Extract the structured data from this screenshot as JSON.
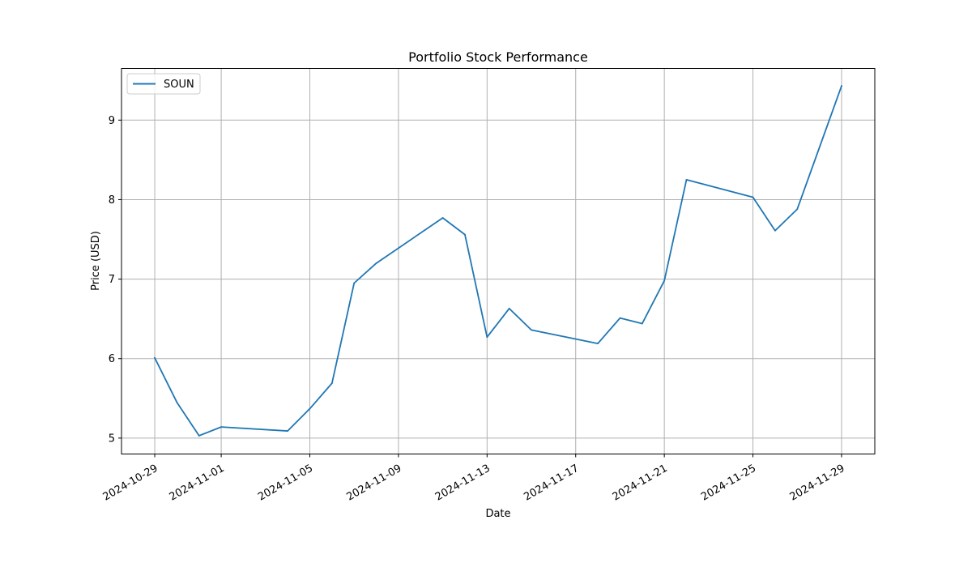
{
  "chart_data": {
    "type": "line",
    "title": "Portfolio Stock Performance",
    "xlabel": "Date",
    "ylabel": "Price (USD)",
    "x_tick_labels": [
      "2024-10-29",
      "2024-11-01",
      "2024-11-05",
      "2024-11-09",
      "2024-11-13",
      "2024-11-17",
      "2024-11-21",
      "2024-11-25",
      "2024-11-29"
    ],
    "y_ticks": [
      5,
      6,
      7,
      8,
      9
    ],
    "xlim": [
      "2024-10-27T12:00",
      "2024-11-30T12:00"
    ],
    "ylim": [
      4.8,
      9.65
    ],
    "grid": true,
    "legend_position": "top-left",
    "series": [
      {
        "name": "SOUN",
        "color": "#1f77b4",
        "x": [
          "2024-10-29",
          "2024-10-30",
          "2024-10-31",
          "2024-11-01",
          "2024-11-04",
          "2024-11-05",
          "2024-11-06",
          "2024-11-07",
          "2024-11-08",
          "2024-11-11",
          "2024-11-12",
          "2024-11-13",
          "2024-11-14",
          "2024-11-15",
          "2024-11-18",
          "2024-11-19",
          "2024-11-20",
          "2024-11-21",
          "2024-11-22",
          "2024-11-25",
          "2024-11-26",
          "2024-11-27",
          "2024-11-29"
        ],
        "y": [
          6.01,
          5.45,
          5.03,
          5.14,
          5.09,
          5.37,
          5.69,
          6.95,
          7.2,
          7.77,
          7.56,
          6.27,
          6.63,
          6.36,
          6.19,
          6.51,
          6.44,
          6.98,
          8.25,
          8.03,
          7.61,
          7.88,
          9.43
        ]
      }
    ]
  }
}
